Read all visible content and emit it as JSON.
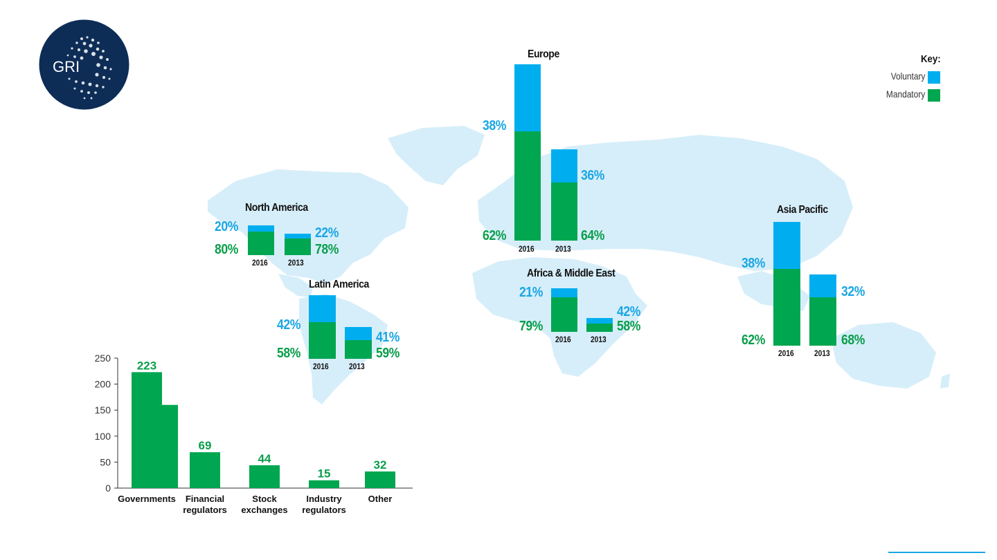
{
  "logo": {
    "text": "GRI"
  },
  "key": {
    "title": "Key:",
    "voluntary": "Voluntary",
    "mandatory": "Mandatory",
    "voluntary_color": "#00aeef",
    "mandatory_color": "#00a650"
  },
  "chart_data": [
    {
      "type": "bar",
      "subtype": "stacked-percent",
      "title": "Europe",
      "categories": [
        "2016",
        "2013"
      ],
      "series": [
        {
          "name": "Voluntary",
          "values": [
            38,
            36
          ]
        },
        {
          "name": "Mandatory",
          "values": [
            62,
            64
          ]
        }
      ],
      "labels": {
        "v2016": "38%",
        "m2016": "62%",
        "v2013": "36%",
        "m2013": "64%"
      }
    },
    {
      "type": "bar",
      "subtype": "stacked-percent",
      "title": "North America",
      "categories": [
        "2016",
        "2013"
      ],
      "series": [
        {
          "name": "Voluntary",
          "values": [
            20,
            22
          ]
        },
        {
          "name": "Mandatory",
          "values": [
            80,
            78
          ]
        }
      ],
      "labels": {
        "v2016": "20%",
        "m2016": "80%",
        "v2013": "22%",
        "m2013": "78%"
      }
    },
    {
      "type": "bar",
      "subtype": "stacked-percent",
      "title": "Latin America",
      "categories": [
        "2016",
        "2013"
      ],
      "series": [
        {
          "name": "Voluntary",
          "values": [
            42,
            41
          ]
        },
        {
          "name": "Mandatory",
          "values": [
            58,
            59
          ]
        }
      ],
      "labels": {
        "v2016": "42%",
        "m2016": "58%",
        "v2013": "41%",
        "m2013": "59%"
      }
    },
    {
      "type": "bar",
      "subtype": "stacked-percent",
      "title": "Africa & Middle East",
      "categories": [
        "2016",
        "2013"
      ],
      "series": [
        {
          "name": "Voluntary",
          "values": [
            21,
            42
          ]
        },
        {
          "name": "Mandatory",
          "values": [
            79,
            58
          ]
        }
      ],
      "labels": {
        "v2016": "21%",
        "m2016": "79%",
        "v2013": "42%",
        "m2013": "58%"
      }
    },
    {
      "type": "bar",
      "subtype": "stacked-percent",
      "title": "Asia Pacific",
      "categories": [
        "2016",
        "2013"
      ],
      "series": [
        {
          "name": "Voluntary",
          "values": [
            38,
            32
          ]
        },
        {
          "name": "Mandatory",
          "values": [
            62,
            68
          ]
        }
      ],
      "labels": {
        "v2016": "38%",
        "m2016": "62%",
        "v2013": "32%",
        "m2013": "68%"
      }
    },
    {
      "type": "bar",
      "categories": [
        "Governments",
        "Financial regulators",
        "Stock exchanges",
        "Industry regulators",
        "Other"
      ],
      "category_lines": [
        [
          "Governments"
        ],
        [
          "Financial",
          "regulators"
        ],
        [
          "Stock",
          "exchanges"
        ],
        [
          "Industry",
          "regulators"
        ],
        [
          "Other"
        ]
      ],
      "values": [
        223,
        69,
        44,
        15,
        32
      ],
      "value_labels": [
        "223",
        "69",
        "44",
        "15",
        "32"
      ],
      "extra_bar": {
        "category": "Governments",
        "value": 160
      },
      "ylim": [
        0,
        250
      ],
      "yticks": [
        0,
        50,
        100,
        150,
        200,
        250
      ],
      "color": "#00a650",
      "label_color": "#0a9e4b"
    }
  ]
}
